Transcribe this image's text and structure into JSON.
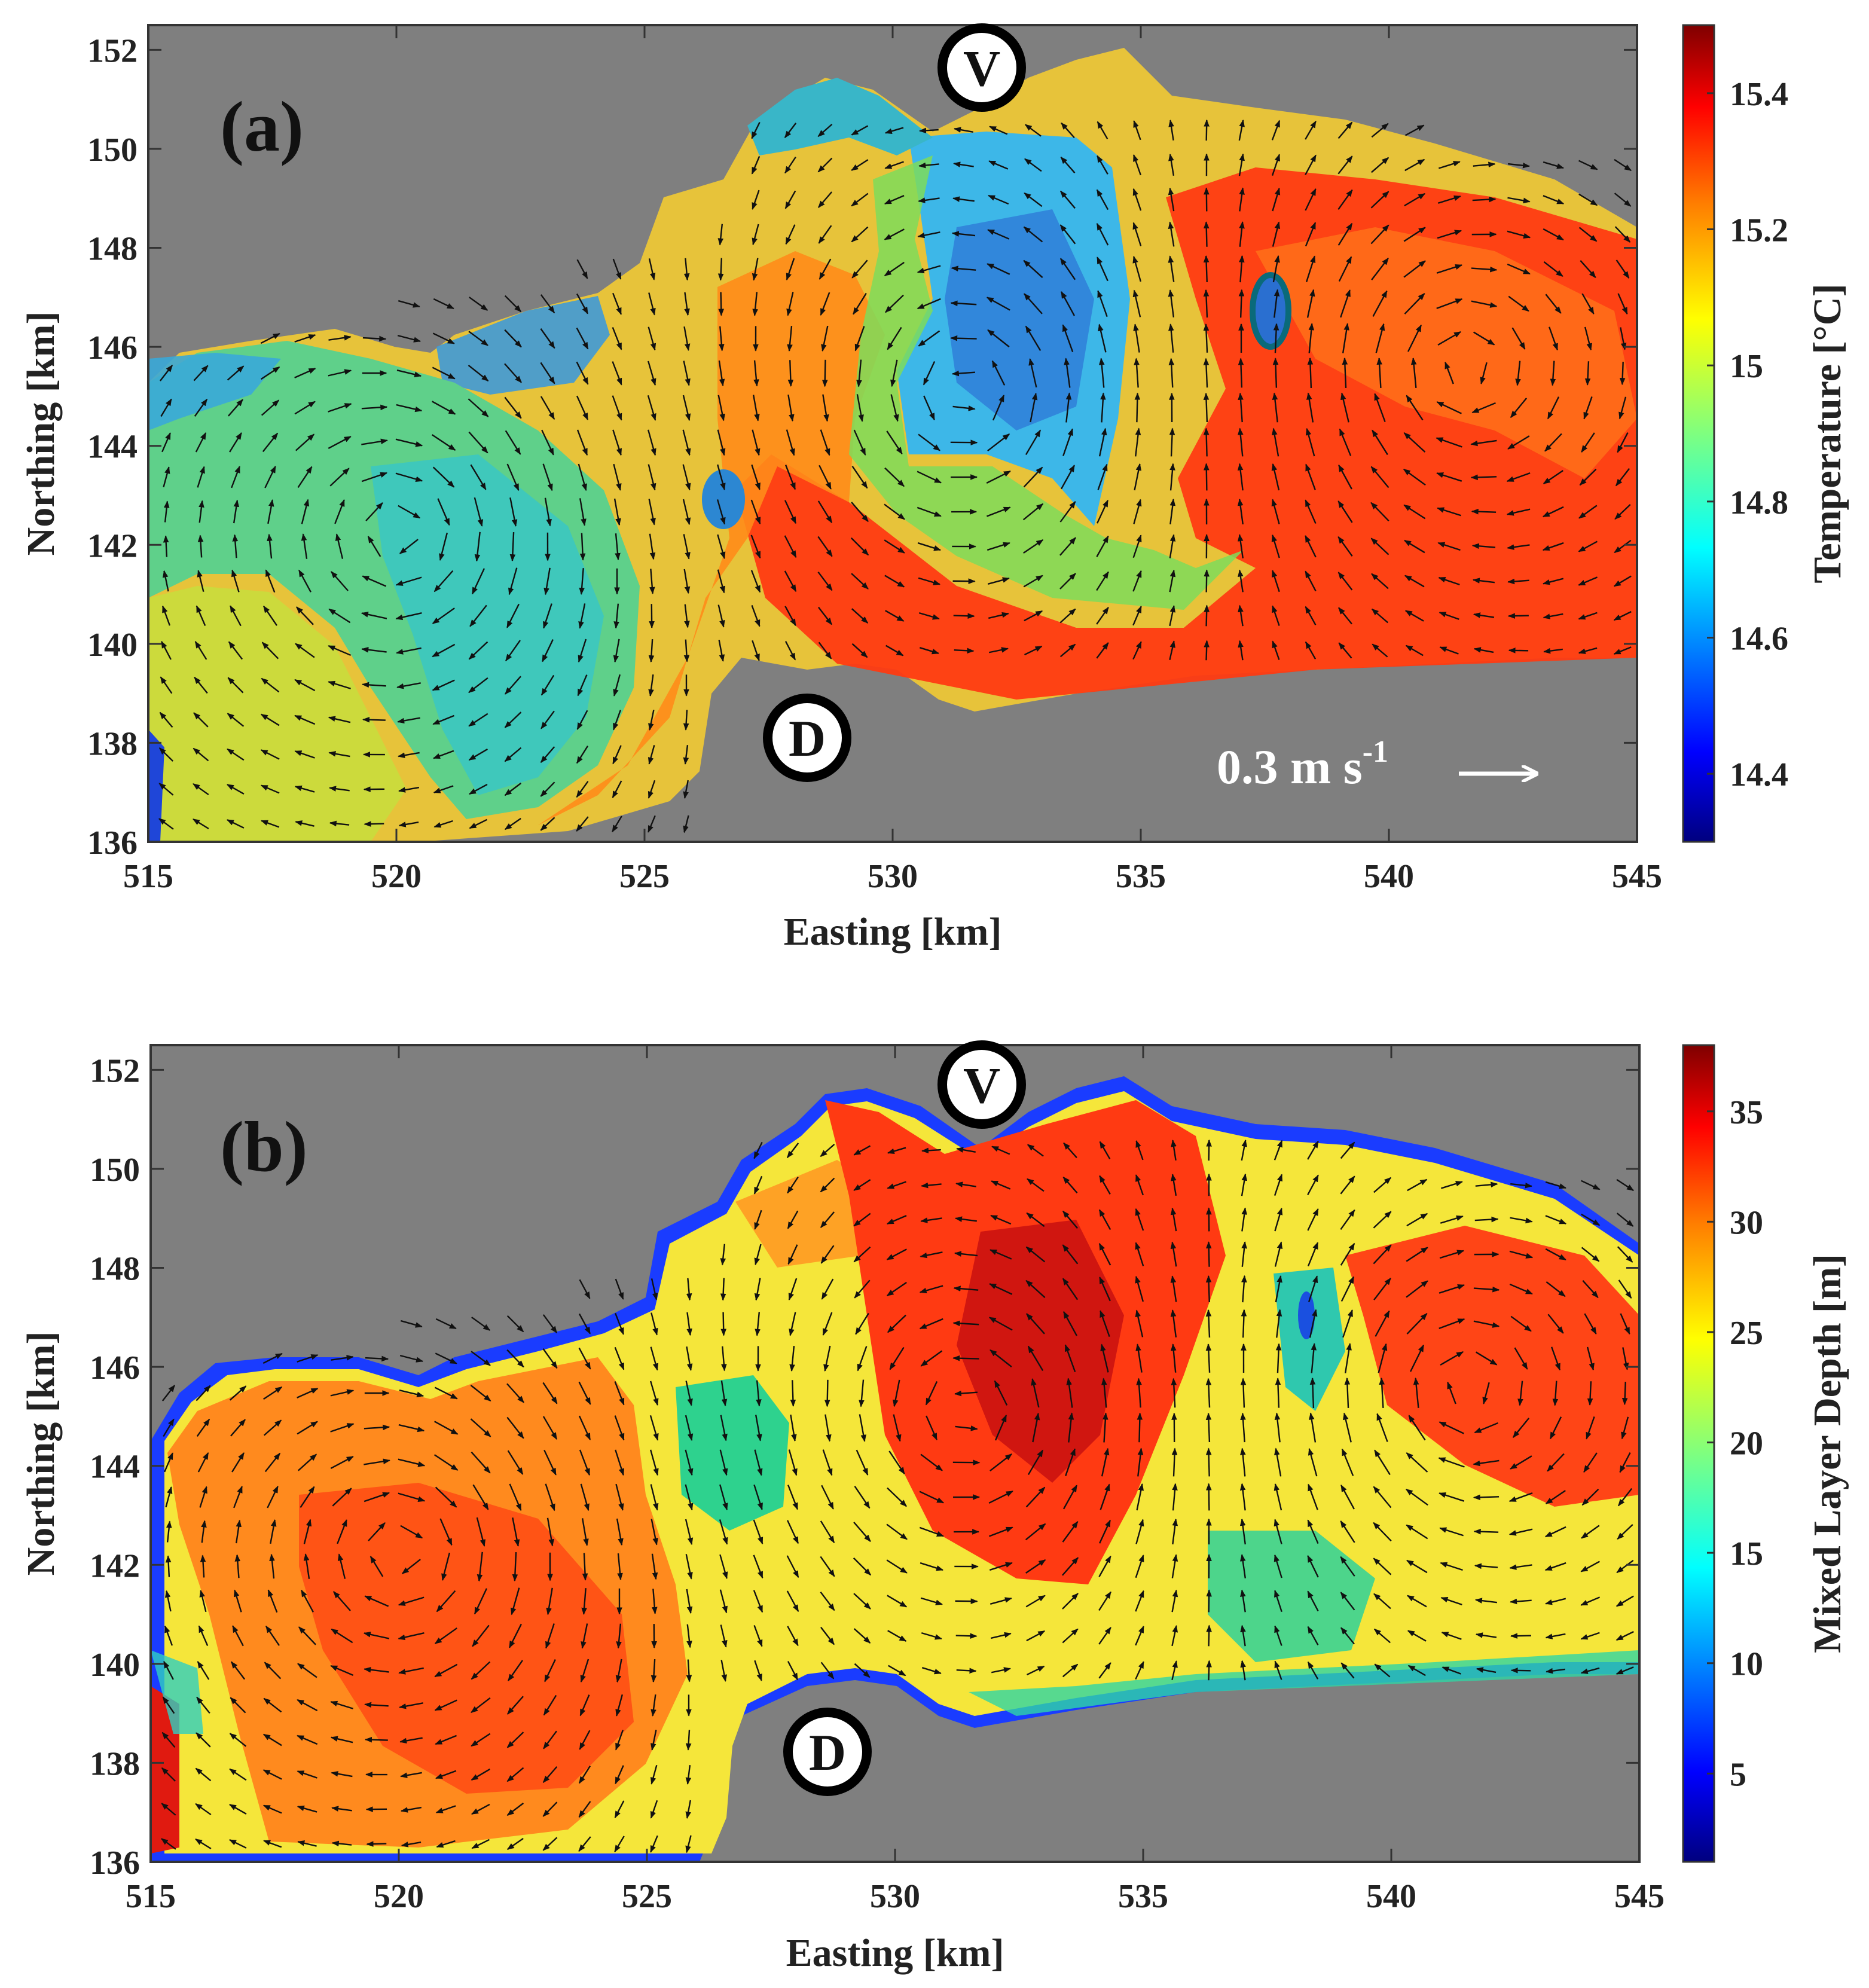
{
  "chart_data": [
    {
      "type": "heatmap",
      "panel_label": "(a)",
      "xlabel": "Easting [km]",
      "ylabel": "Northing [km]",
      "xlim": [
        515,
        545
      ],
      "ylim": [
        136,
        152.5
      ],
      "xticks": [
        "515",
        "520",
        "525",
        "530",
        "535",
        "540",
        "545"
      ],
      "yticks": [
        "136",
        "138",
        "140",
        "142",
        "144",
        "146",
        "148",
        "150",
        "152"
      ],
      "colorbar": {
        "label": "Temperature [°C]",
        "range": [
          14.3,
          15.5
        ],
        "ticks": [
          "14.4",
          "14.6",
          "14.8",
          "15",
          "15.2",
          "15.4"
        ]
      },
      "markers": [
        {
          "label": "V",
          "easting": 531.8,
          "northing": 151.6
        },
        {
          "label": "D",
          "easting": 528.5,
          "northing": 138.2
        }
      ],
      "scale_arrow": {
        "text": "0.3 m s",
        "superscript": "-1"
      },
      "overlay": "surface current velocity vectors"
    },
    {
      "type": "heatmap",
      "panel_label": "(b)",
      "xlabel": "Easting [km]",
      "ylabel": "Northing [km]",
      "xlim": [
        515,
        545
      ],
      "ylim": [
        136,
        152.5
      ],
      "xticks": [
        "515",
        "520",
        "525",
        "530",
        "535",
        "540",
        "545"
      ],
      "yticks": [
        "136",
        "138",
        "140",
        "142",
        "144",
        "146",
        "148",
        "150",
        "152"
      ],
      "colorbar": {
        "label": "Mixed Layer Depth [m]",
        "range": [
          1,
          38
        ],
        "ticks": [
          "5",
          "10",
          "15",
          "20",
          "25",
          "30",
          "35"
        ]
      },
      "markers": [
        {
          "label": "V",
          "easting": 531.8,
          "northing": 151.6
        },
        {
          "label": "D",
          "easting": 528.5,
          "northing": 138.2
        }
      ],
      "overlay": "surface current velocity vectors"
    }
  ],
  "colors": {
    "land": "#7f7f7f",
    "jet": [
      "#00007f",
      "#0000ff",
      "#007fff",
      "#00ffff",
      "#7fff7f",
      "#ffff00",
      "#ff7f00",
      "#ff0000",
      "#7f0000"
    ]
  }
}
